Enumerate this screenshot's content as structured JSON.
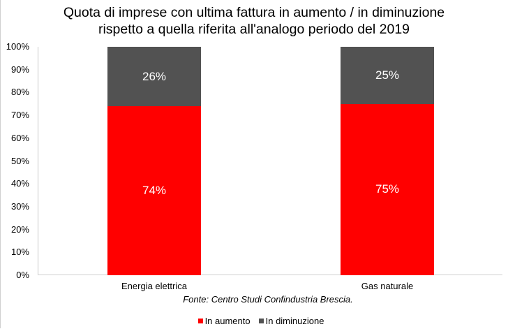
{
  "chart_data": {
    "type": "bar",
    "stacked": true,
    "percent": true,
    "title": "Quota di imprese con ultima fattura in aumento / in diminuzione rispetto a quella riferita all'analogo periodo del 2019",
    "title_lines": [
      "Quota di imprese con ultima fattura in aumento / in diminuzione",
      "rispetto a quella riferita all'analogo periodo del 2019"
    ],
    "categories": [
      "Energia elettrica",
      "Gas naturale"
    ],
    "series": [
      {
        "name": "In aumento",
        "color": "#ff0000",
        "values": [
          74,
          75
        ],
        "labels": [
          "74%",
          "75%"
        ]
      },
      {
        "name": "In diminuzione",
        "color": "#525252",
        "values": [
          26,
          25
        ],
        "labels": [
          "26%",
          "25%"
        ]
      }
    ],
    "xlabel": "",
    "ylabel": "",
    "ylim": [
      0,
      100
    ],
    "yticks": [
      "0%",
      "10%",
      "20%",
      "30%",
      "40%",
      "50%",
      "60%",
      "70%",
      "80%",
      "90%",
      "100%"
    ],
    "grid": false,
    "legend_position": "bottom",
    "annotation": "Fonte: Centro Studi Confindustria Brescia."
  }
}
